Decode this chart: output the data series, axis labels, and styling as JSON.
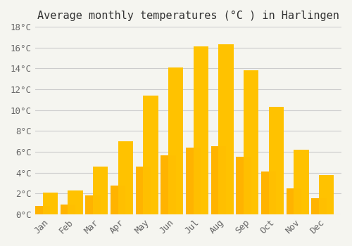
{
  "title": "Average monthly temperatures (°C ) in Harlingen",
  "months": [
    "Jan",
    "Feb",
    "Mar",
    "Apr",
    "May",
    "Jun",
    "Jul",
    "Aug",
    "Sep",
    "Oct",
    "Nov",
    "Dec"
  ],
  "values": [
    2.1,
    2.3,
    4.6,
    7.0,
    11.4,
    14.1,
    16.1,
    16.3,
    13.8,
    10.3,
    6.2,
    3.8
  ],
  "bar_color_top": "#FFC200",
  "bar_color_bottom": "#FFB300",
  "background_color": "#F5F5F0",
  "ylim": [
    0,
    18
  ],
  "yticks": [
    0,
    2,
    4,
    6,
    8,
    10,
    12,
    14,
    16,
    18
  ],
  "ytick_labels": [
    "0°C",
    "2°C",
    "4°C",
    "6°C",
    "8°C",
    "10°C",
    "12°C",
    "14°C",
    "16°C",
    "18°C"
  ],
  "title_fontsize": 11,
  "tick_fontsize": 9,
  "bar_width": 0.6,
  "grid_color": "#CCCCCC",
  "font_family": "monospace"
}
